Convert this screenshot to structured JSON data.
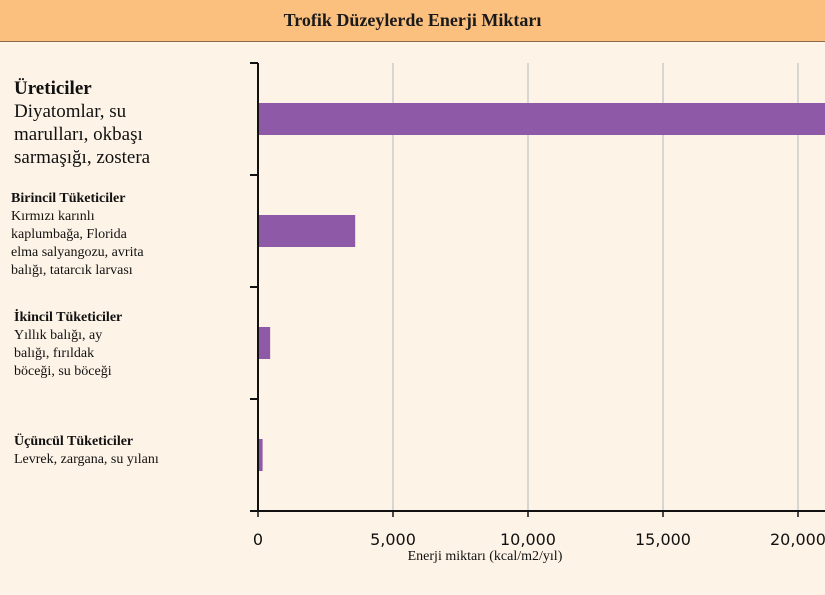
{
  "header": {
    "title": "Trofik Düzeylerde Enerji Miktarı"
  },
  "levels": [
    {
      "title": "Üreticiler",
      "desc": "Diyatomlar, su\nmarulları, okbaşı\nsarmaşığı, zostera"
    },
    {
      "title": "Birincil Tüketiciler",
      "desc": "Kırmızı karınlı\nkaplumbağa, Florida\nelma salyangozu, avrita\nbalığı, tatarcık larvası"
    },
    {
      "title": "İkincil Tüketiciler",
      "desc": "Yıllık balığı, ay\nbalığı, fırıldak\nböceği, su böceği"
    },
    {
      "title": "Üçüncül Tüketiciler",
      "desc": "Levrek, zargana, su yılanı"
    }
  ],
  "chart_data": {
    "type": "bar",
    "orientation": "horizontal",
    "title": "Trofik Düzeylerde Enerji Miktarı",
    "categories": [
      "Üreticiler",
      "Birincil Tüketiciler",
      "İkincil Tüketiciler",
      "Üçüncül Tüketiciler"
    ],
    "values": [
      21000,
      3600,
      450,
      170
    ],
    "xlabel": "Enerji miktarı (kcal/m2/yıl)",
    "ylabel": "",
    "xlim": [
      0,
      21000
    ],
    "xticks": [
      0,
      5000,
      10000,
      15000,
      20000
    ],
    "xtick_labels": [
      "0",
      "5,000",
      "10,000",
      "15,000",
      "20,000"
    ],
    "grid": true,
    "bar_color": "#8e5aa8",
    "grid_color": "#cccccc"
  }
}
